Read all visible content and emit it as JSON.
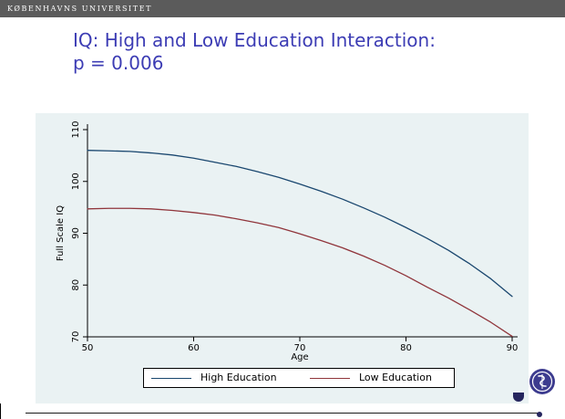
{
  "header": {
    "university": "KØBENHAVNS UNIVERSITET"
  },
  "slide": {
    "title_line1": "IQ: High and Low Education Interaction:",
    "title_line2": "p = 0.006"
  },
  "logo": {
    "icon": "university-seal-icon",
    "color": "#3d3c8f"
  },
  "colors": {
    "header_bar": "#5b5b5b",
    "title": "#3c3cb4",
    "chart_background": "#eaf2f3",
    "high_education": "#1a476f",
    "low_education": "#90353b"
  },
  "chart_data": {
    "type": "line",
    "xlabel": "Age",
    "ylabel": "Full Scale IQ",
    "xlim": [
      50,
      90
    ],
    "ylim": [
      70,
      110
    ],
    "x_ticks": [
      50,
      60,
      70,
      80,
      90
    ],
    "y_ticks": [
      70,
      80,
      90,
      100,
      110
    ],
    "grid": false,
    "legend_position": "bottom",
    "x": [
      50,
      52,
      54,
      56,
      58,
      60,
      62,
      64,
      66,
      68,
      70,
      72,
      74,
      76,
      78,
      80,
      82,
      84,
      86,
      88,
      90
    ],
    "series": [
      {
        "name": "High Education",
        "color": "#1a476f",
        "values": [
          106.0,
          105.9,
          105.8,
          105.5,
          105.1,
          104.5,
          103.7,
          102.9,
          101.9,
          100.8,
          99.5,
          98.1,
          96.6,
          94.9,
          93.1,
          91.1,
          89.0,
          86.7,
          84.1,
          81.2,
          77.8
        ]
      },
      {
        "name": "Low Education",
        "color": "#90353b",
        "values": [
          94.7,
          94.8,
          94.8,
          94.7,
          94.4,
          94.0,
          93.5,
          92.8,
          92.0,
          91.1,
          89.9,
          88.6,
          87.2,
          85.6,
          83.8,
          81.8,
          79.6,
          77.5,
          75.2,
          72.8,
          70.1
        ]
      }
    ]
  }
}
